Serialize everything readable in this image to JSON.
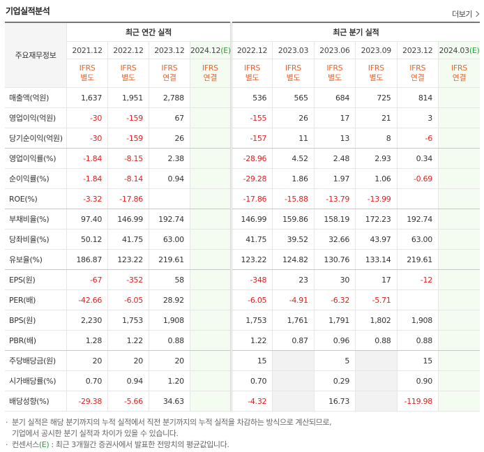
{
  "header": {
    "title": "기업실적분석",
    "more": "더보기"
  },
  "table": {
    "corner": "주요재무정보",
    "groups": [
      {
        "label": "최근 연간 실적",
        "columns": [
          {
            "period": "2021.12",
            "standard": "IFRS",
            "basis": "별도"
          },
          {
            "period": "2022.12",
            "standard": "IFRS",
            "basis": "별도"
          },
          {
            "period": "2023.12",
            "standard": "IFRS",
            "basis": "연결"
          },
          {
            "period": "2024.12",
            "estimate": "(E)",
            "standard": "IFRS",
            "basis": "연결"
          }
        ]
      },
      {
        "label": "최근 분기 실적",
        "columns": [
          {
            "period": "2022.12",
            "standard": "IFRS",
            "basis": "별도"
          },
          {
            "period": "2023.03",
            "standard": "IFRS",
            "basis": "별도"
          },
          {
            "period": "2023.06",
            "standard": "IFRS",
            "basis": "별도"
          },
          {
            "period": "2023.09",
            "standard": "IFRS",
            "basis": "별도"
          },
          {
            "period": "2023.12",
            "standard": "IFRS",
            "basis": "연결"
          },
          {
            "period": "2024.03",
            "estimate": "(E)",
            "standard": "IFRS",
            "basis": "연결"
          }
        ]
      }
    ],
    "rows": [
      {
        "label": "매출액(억원)",
        "values": [
          "1,637",
          "1,951",
          "2,788",
          null,
          "536",
          "565",
          "684",
          "725",
          "814",
          null
        ]
      },
      {
        "label": "영업이익(억원)",
        "values": [
          "-30",
          "-159",
          "67",
          null,
          "-155",
          "26",
          "17",
          "21",
          "3",
          null
        ]
      },
      {
        "label": "당기순이익(억원)",
        "values": [
          "-30",
          "-159",
          "26",
          null,
          "-157",
          "11",
          "13",
          "8",
          "-6",
          null
        ]
      },
      {
        "label": "영업이익률(%)",
        "values": [
          "-1.84",
          "-8.15",
          "2.38",
          null,
          "-28.96",
          "4.52",
          "2.48",
          "2.93",
          "0.34",
          null
        ]
      },
      {
        "label": "순이익률(%)",
        "values": [
          "-1.84",
          "-8.14",
          "0.94",
          null,
          "-29.28",
          "1.86",
          "1.97",
          "1.06",
          "-0.69",
          null
        ]
      },
      {
        "label": "ROE(%)",
        "values": [
          "-3.32",
          "-17.86",
          null,
          null,
          "-17.86",
          "-15.88",
          "-13.79",
          "-13.99",
          null,
          null
        ]
      },
      {
        "label": "부채비율(%)",
        "values": [
          "97.40",
          "146.99",
          "192.74",
          null,
          "146.99",
          "159.86",
          "158.19",
          "172.23",
          "192.74",
          null
        ]
      },
      {
        "label": "당좌비율(%)",
        "values": [
          "50.12",
          "41.75",
          "63.00",
          null,
          "41.75",
          "39.52",
          "32.66",
          "43.97",
          "63.00",
          null
        ]
      },
      {
        "label": "유보율(%)",
        "values": [
          "186.87",
          "123.22",
          "219.61",
          null,
          "123.22",
          "124.82",
          "130.76",
          "133.14",
          "219.61",
          null
        ]
      },
      {
        "label": "EPS(원)",
        "values": [
          "-67",
          "-352",
          "58",
          null,
          "-348",
          "23",
          "30",
          "17",
          "-12",
          null
        ]
      },
      {
        "label": "PER(배)",
        "values": [
          "-42.66",
          "-6.05",
          "28.92",
          null,
          "-6.05",
          "-4.91",
          "-6.32",
          "-5.71",
          null,
          null
        ]
      },
      {
        "label": "BPS(원)",
        "values": [
          "2,230",
          "1,753",
          "1,908",
          null,
          "1,753",
          "1,761",
          "1,791",
          "1,802",
          "1,908",
          null
        ]
      },
      {
        "label": "PBR(배)",
        "values": [
          "1.28",
          "1.22",
          "0.88",
          null,
          "1.22",
          "0.87",
          "0.96",
          "0.88",
          "0.88",
          null
        ]
      },
      {
        "label": "주당배당금(원)",
        "values": [
          "20",
          "20",
          "20",
          null,
          "15",
          null,
          "5",
          null,
          "15",
          null
        ]
      },
      {
        "label": "시가배당률(%)",
        "values": [
          "0.70",
          "0.94",
          "1.20",
          null,
          "0.70",
          null,
          "0.29",
          null,
          "0.90",
          null
        ]
      },
      {
        "label": "배당성향(%)",
        "values": [
          "-29.38",
          "-5.66",
          "34.63",
          null,
          "-4.32",
          null,
          "16.73",
          null,
          "-119.98",
          null
        ]
      }
    ]
  },
  "notes": [
    {
      "lines": [
        "분기 실적은 해당 분기까지의 누적 실적에서 직전 분기까지의 누적 실적을 차감하는 방식으로 계산되므로,",
        "기업에서 공시한 분기 실적과 차이가 있을 수 있습니다."
      ]
    },
    {
      "lines": [
        "컨센서스"
      ],
      "estimate": "(E)",
      "rest": " : 최근 3개월간 증권사에서 발표한 전망치의 평균값입니다."
    }
  ]
}
